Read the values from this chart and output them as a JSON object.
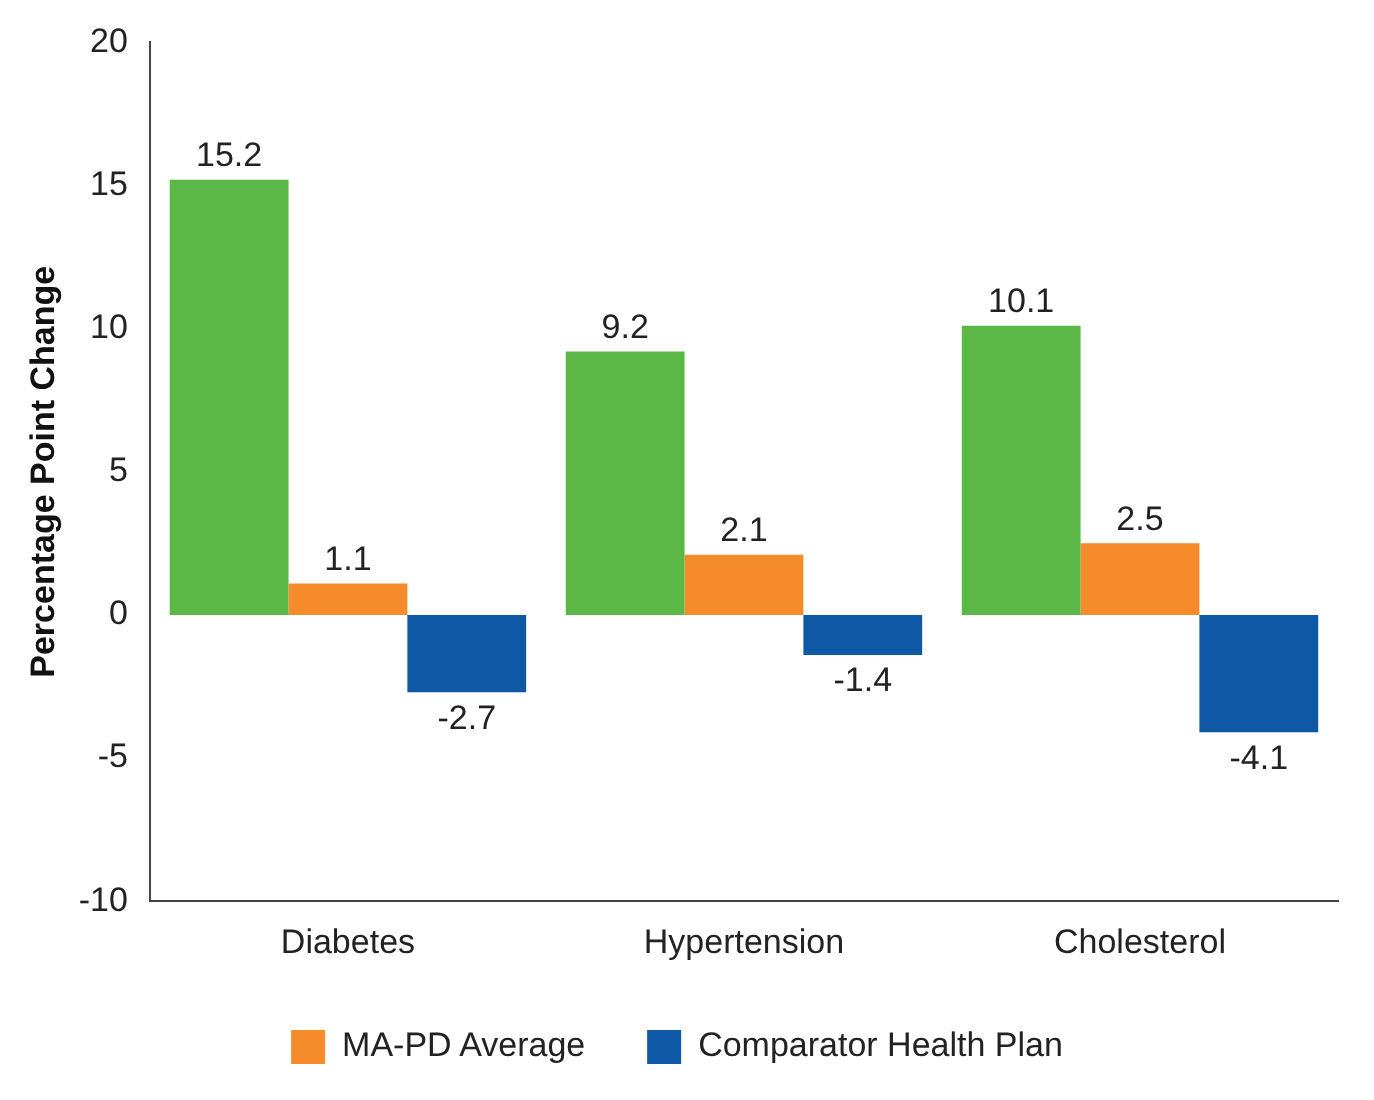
{
  "chart_data": {
    "type": "bar",
    "ylabel": "Percentage Point Change",
    "categories": [
      "Diabetes",
      "Hypertension",
      "Cholesterol"
    ],
    "series": [
      {
        "color": "#5bb846",
        "values": [
          15.2,
          9.2,
          10.1
        ]
      },
      {
        "name": "MA-PD Average",
        "color": "#f68b2b",
        "values": [
          1.1,
          2.1,
          2.5
        ]
      },
      {
        "name": "Comparator Health Plan",
        "color": "#0f58a5",
        "values": [
          -2.7,
          -1.4,
          -4.1
        ]
      }
    ],
    "ylim": [
      -10,
      20
    ],
    "yticks": [
      -10,
      -5,
      0,
      5,
      10,
      15,
      20
    ],
    "grid": false,
    "legend": "bottom",
    "data_labels": true
  }
}
